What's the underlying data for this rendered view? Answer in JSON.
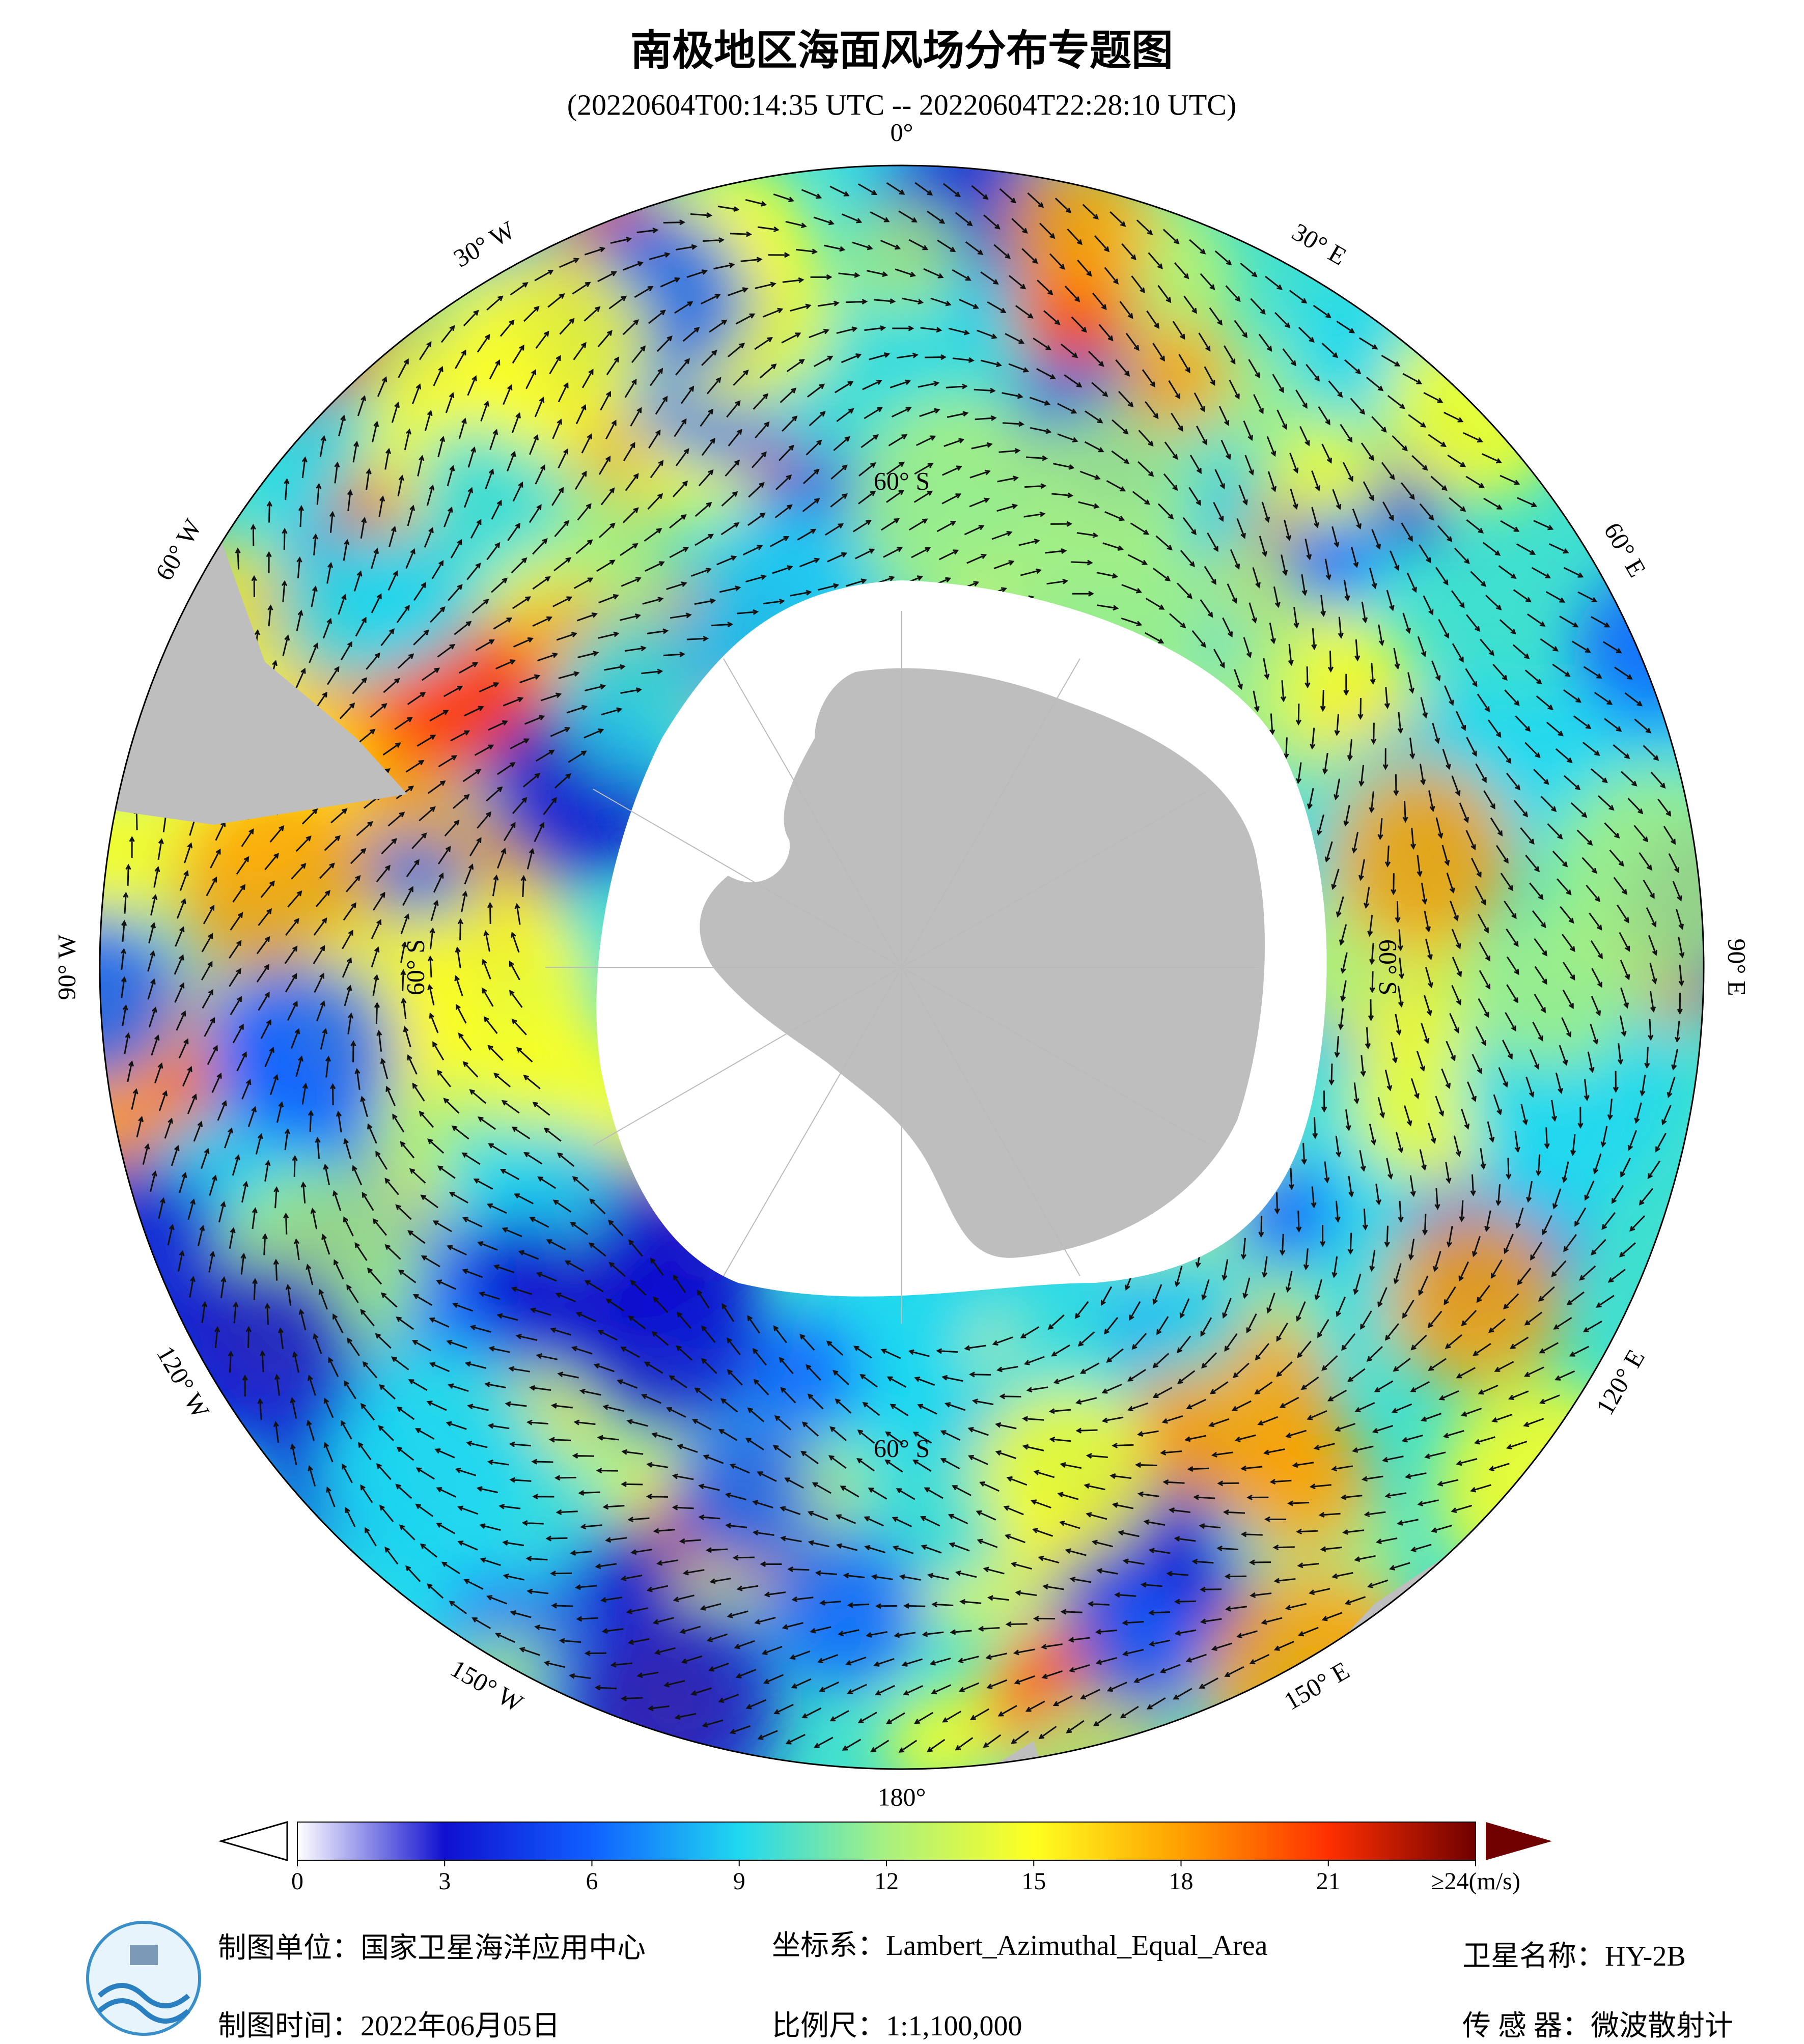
{
  "title": "南极地区海面风场分布专题图",
  "subtitle": "(20220604T00:14:35 UTC -- 20220604T22:28:10 UTC)",
  "map": {
    "longitude_labels": [
      "0°",
      "30° E",
      "60° E",
      "90° E",
      "120° E",
      "150° E",
      "180°",
      "150° W",
      "120° W",
      "90° W",
      "60° W",
      "30° W"
    ],
    "latitude_labels": [
      "60° S",
      "60° S",
      "60° S",
      "60° S"
    ]
  },
  "colorbar": {
    "range": [
      0,
      24
    ],
    "ticks": [
      0,
      3,
      6,
      9,
      12,
      15,
      18,
      21,
      {
        "value": 24,
        "label": "≥24(m/s)"
      }
    ],
    "colors": [
      "#ffffff",
      "#1010d0",
      "#1060ff",
      "#20d8f0",
      "#a8f080",
      "#ffff20",
      "#ffa000",
      "#ff3000",
      "#700000"
    ]
  },
  "footer": {
    "producer": "制图单位：国家卫星海洋应用中心",
    "date": "制图时间：2022年06月05日",
    "projection": "坐标系：Lambert_Azimuthal_Equal_Area",
    "scale": "比例尺：1:1,100,000",
    "satellite": "卫星名称：HY-2B",
    "sensor": "传 感 器：微波散射计"
  }
}
